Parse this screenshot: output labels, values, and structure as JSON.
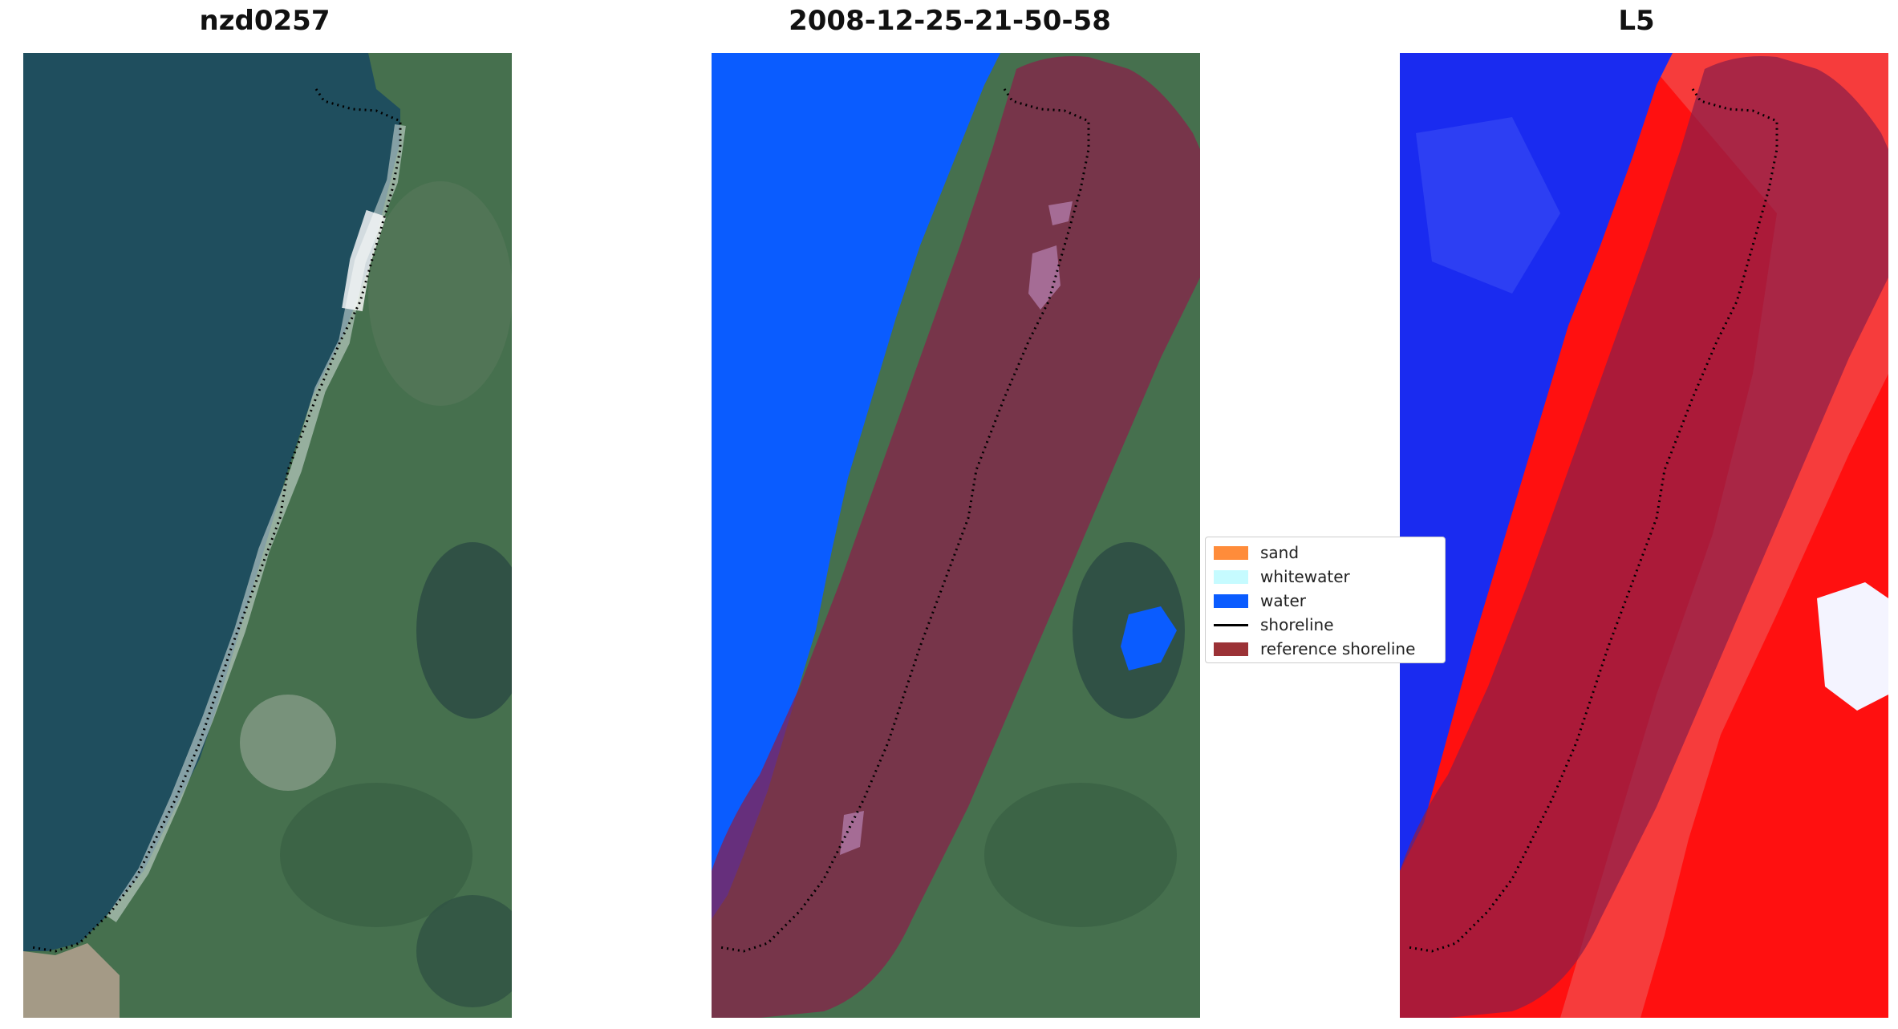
{
  "panels": [
    {
      "title": "nzd0257"
    },
    {
      "title": "2008-12-25-21-50-58"
    },
    {
      "title": "L5"
    }
  ],
  "legend": {
    "items": [
      {
        "label": "sand",
        "color": "#ff8c3a",
        "kind": "patch"
      },
      {
        "label": "whitewater",
        "color": "#c6fbff",
        "kind": "patch"
      },
      {
        "label": "water",
        "color": "#0a5cff",
        "kind": "patch"
      },
      {
        "label": "shoreline",
        "color": "#000000",
        "kind": "line"
      },
      {
        "label": "reference shoreline",
        "color": "#9b3236",
        "kind": "patch"
      }
    ]
  },
  "colors": {
    "sea": "#1f4e5e",
    "land": "#3f6c4a",
    "water_class": "#0a5cff",
    "buffer": "#8a1f4a",
    "index_water": "#1a2bf0",
    "index_land": "#ff1010"
  }
}
